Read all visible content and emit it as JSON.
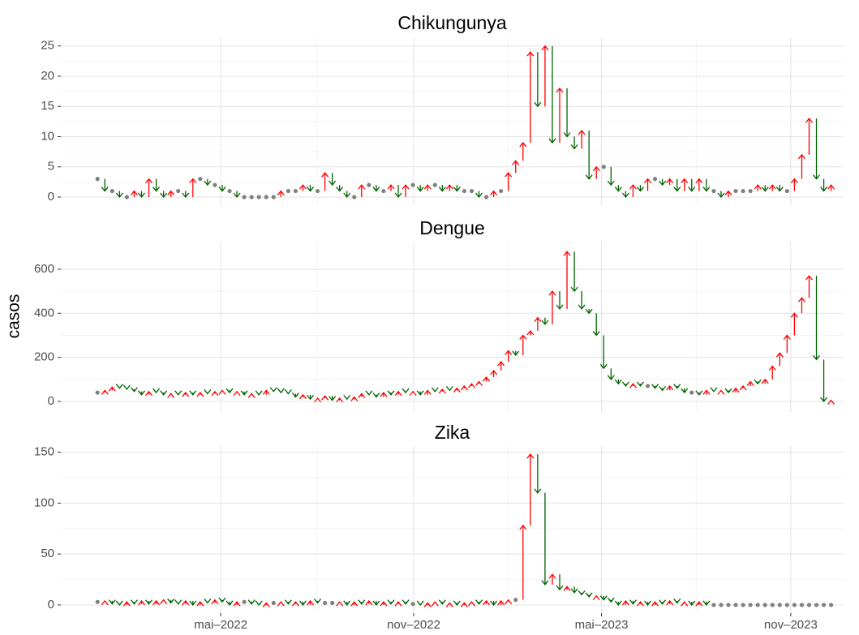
{
  "chart_data": {
    "type": "arrow",
    "y_label": "casos",
    "grid": true,
    "colors": {
      "up": "#ff0000",
      "down": "#006400",
      "same": "#808080"
    },
    "categories": [
      null,
      null,
      null,
      null,
      null,
      null,
      null,
      null,
      null,
      null,
      null,
      null,
      null,
      null,
      null,
      null,
      null,
      null,
      null,
      null,
      null,
      null,
      null,
      null,
      null,
      null,
      null,
      null,
      null,
      null,
      null,
      null,
      null,
      null,
      null,
      null,
      null,
      null,
      null,
      null,
      null,
      null,
      null,
      null,
      null,
      null,
      null,
      null,
      null,
      null,
      null,
      null,
      null,
      null,
      null,
      null,
      null,
      null,
      null,
      null,
      null,
      null,
      null,
      null,
      null,
      null,
      null,
      null,
      null,
      null,
      null,
      null,
      null,
      null,
      null,
      null,
      null,
      null,
      null,
      null,
      null,
      null,
      null,
      null,
      null,
      null,
      null,
      null,
      null,
      null,
      null,
      null,
      null,
      null,
      null,
      null,
      null,
      null,
      null,
      null,
      null
    ],
    "xlim": [
      -5,
      101.7
    ],
    "xticks": [
      {
        "value": 16.8,
        "label": "mai–2022"
      },
      {
        "value": 43.1,
        "label": "nov–2022"
      },
      {
        "value": 68.7,
        "label": "mai–2023"
      },
      {
        "value": 94.5,
        "label": "nov–2023"
      }
    ],
    "panels": [
      {
        "title": "Chikungunya",
        "ylim": [
          -1.34,
          26.3
        ],
        "yticks": [
          0,
          5,
          10,
          15,
          20,
          25
        ],
        "values": [
          3,
          1,
          1,
          0,
          0,
          1,
          0,
          3,
          1,
          0,
          1,
          1,
          0,
          3,
          3,
          2,
          2,
          1,
          1,
          0,
          0,
          0,
          0,
          0,
          0,
          1,
          1,
          1,
          2,
          1,
          1,
          4,
          2,
          1,
          0,
          0,
          2,
          2,
          1,
          1,
          2,
          0,
          2,
          2,
          1,
          2,
          2,
          1,
          2,
          1,
          1,
          1,
          0,
          0,
          1,
          1,
          4,
          6,
          9,
          24,
          15,
          25,
          9,
          18,
          10,
          8,
          11,
          3,
          5,
          5,
          2,
          1,
          0,
          2,
          1,
          3,
          3,
          2,
          3,
          1,
          3,
          1,
          3,
          1,
          1,
          0,
          1,
          1,
          1,
          1,
          2,
          1,
          2,
          1,
          1,
          3,
          7,
          13,
          3,
          1,
          2
        ]
      },
      {
        "title": "Dengue",
        "ylim": [
          -48,
          725
        ],
        "yticks": [
          0,
          200,
          400,
          600
        ],
        "values": [
          40,
          50,
          65,
          60,
          55,
          45,
          30,
          45,
          40,
          30,
          35,
          30,
          40,
          30,
          40,
          35,
          45,
          50,
          40,
          45,
          30,
          35,
          30,
          50,
          45,
          40,
          35,
          20,
          30,
          10,
          15,
          25,
          5,
          15,
          10,
          20,
          35,
          30,
          20,
          40,
          30,
          45,
          40,
          45,
          30,
          50,
          45,
          55,
          50,
          60,
          70,
          80,
          90,
          110,
          140,
          180,
          230,
          210,
          300,
          320,
          380,
          350,
          500,
          420,
          680,
          500,
          420,
          400,
          300,
          150,
          100,
          80,
          70,
          80,
          70,
          70,
          60,
          50,
          70,
          60,
          40,
          40,
          30,
          50,
          45,
          50,
          40,
          60,
          70,
          90,
          80,
          100,
          160,
          220,
          300,
          400,
          470,
          570,
          190,
          0,
          5
        ]
      },
      {
        "title": "Zika",
        "ylim": [
          -8,
          156
        ],
        "yticks": [
          0,
          50,
          100,
          150
        ],
        "values": [
          3,
          4,
          1,
          0,
          3,
          1,
          4,
          1,
          4,
          5,
          2,
          1,
          4,
          0,
          3,
          2,
          5,
          3,
          0,
          3,
          3,
          1,
          0,
          2,
          2,
          3,
          1,
          3,
          0,
          4,
          2,
          2,
          2,
          3,
          0,
          3,
          1,
          4,
          0,
          3,
          1,
          3,
          1,
          1,
          0,
          2,
          3,
          1,
          2,
          0,
          2,
          3,
          1,
          4,
          0,
          4,
          5,
          5,
          78,
          148,
          110,
          20,
          30,
          15,
          18,
          12,
          10,
          8,
          9,
          5,
          3,
          0,
          4,
          1,
          3,
          0,
          3,
          1,
          4,
          2,
          3,
          0,
          3,
          0,
          0,
          0,
          0,
          0,
          0,
          0,
          0,
          0,
          0,
          0,
          0,
          0,
          0,
          0,
          0,
          0,
          0
        ]
      }
    ]
  }
}
